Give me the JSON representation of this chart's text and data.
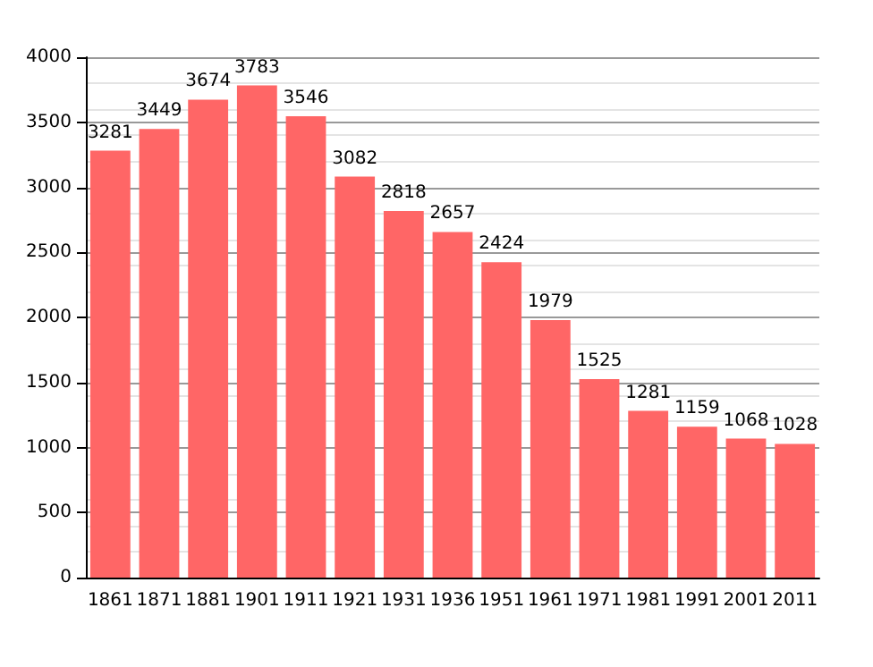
{
  "chart_data": {
    "type": "bar",
    "categories": [
      "1861",
      "1871",
      "1881",
      "1901",
      "1911",
      "1921",
      "1931",
      "1936",
      "1951",
      "1961",
      "1971",
      "1981",
      "1991",
      "2001",
      "2011"
    ],
    "values": [
      3281,
      3449,
      3674,
      3783,
      3546,
      3082,
      2818,
      2657,
      2424,
      1979,
      1525,
      1281,
      1159,
      1068,
      1028
    ],
    "color": "#ff6666",
    "ylim": [
      0,
      4000
    ],
    "yticks": [
      0,
      500,
      1000,
      1500,
      2000,
      2500,
      3000,
      3500,
      4000
    ],
    "grid": "y",
    "data_labels": true
  }
}
